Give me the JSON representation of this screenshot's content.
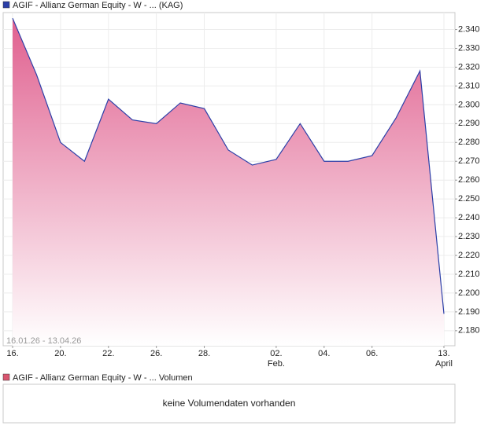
{
  "chart_data": {
    "type": "area",
    "title": "AGIF - Allianz German Equity - W - ... (KAG)",
    "date_range": "16.01.26 - 13.04.26",
    "categories": [
      "16.",
      null,
      "20.",
      null,
      "22.",
      null,
      "26.",
      null,
      "28.",
      null,
      null,
      "02.",
      null,
      "04.",
      null,
      "06.",
      null,
      null,
      "13."
    ],
    "category_sublabels": [
      null,
      null,
      null,
      null,
      null,
      null,
      null,
      null,
      null,
      null,
      null,
      "Feb.",
      null,
      null,
      null,
      null,
      null,
      null,
      "April"
    ],
    "series": [
      {
        "name": "AGIF - Allianz German Equity - W - ... (KAG)",
        "color": "#2b3fa8",
        "values": [
          2.346,
          2.316,
          2.28,
          2.27,
          2.303,
          2.292,
          2.29,
          2.301,
          2.298,
          2.276,
          2.268,
          2.271,
          2.29,
          2.27,
          2.27,
          2.273,
          2.293,
          2.318,
          2.189
        ]
      }
    ],
    "ylim": [
      2.172,
      2.349
    ],
    "yticks": [
      {
        "value": 2.18,
        "label": "2.180"
      },
      {
        "value": 2.19,
        "label": "2.190"
      },
      {
        "value": 2.2,
        "label": "2.200"
      },
      {
        "value": 2.21,
        "label": "2.210"
      },
      {
        "value": 2.22,
        "label": "2.220"
      },
      {
        "value": 2.23,
        "label": "2.230"
      },
      {
        "value": 2.24,
        "label": "2.240"
      },
      {
        "value": 2.25,
        "label": "2.250"
      },
      {
        "value": 2.26,
        "label": "2.260"
      },
      {
        "value": 2.27,
        "label": "2.270"
      },
      {
        "value": 2.28,
        "label": "2.280"
      },
      {
        "value": 2.29,
        "label": "2.290"
      },
      {
        "value": 2.3,
        "label": "2.300"
      },
      {
        "value": 2.31,
        "label": "2.310"
      },
      {
        "value": 2.32,
        "label": "2.320"
      },
      {
        "value": 2.33,
        "label": "2.330"
      },
      {
        "value": 2.34,
        "label": "2.340"
      }
    ],
    "grid": true,
    "fill_color": "#e0608f",
    "volume": {
      "title": "AGIF - Allianz German Equity - W - ... Volumen",
      "color": "#d9556f",
      "message": "keine Volumendaten vorhanden"
    }
  }
}
